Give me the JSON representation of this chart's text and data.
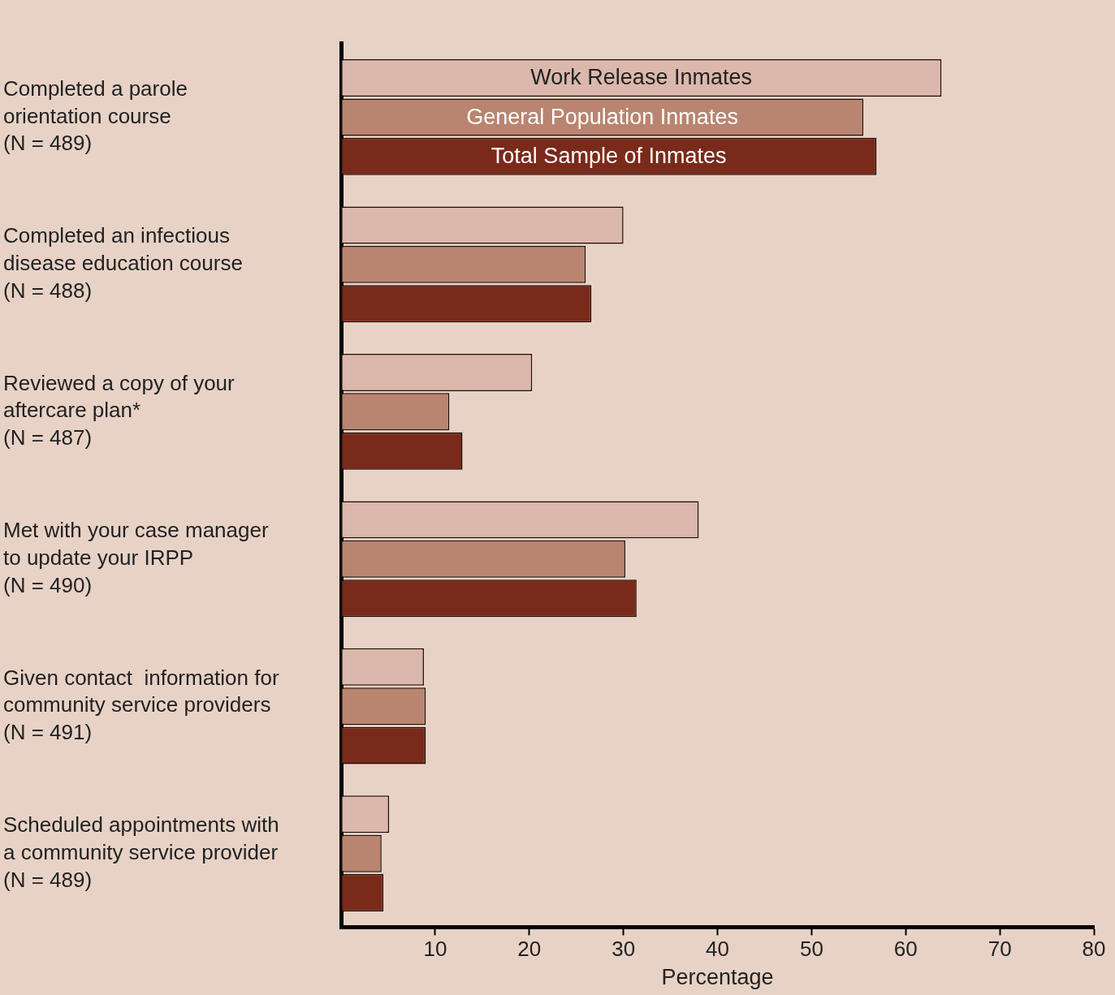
{
  "chart_data": {
    "type": "bar",
    "orientation": "horizontal",
    "xlabel": "Percentage",
    "categories": [
      "Completed a parole\norientation course\n(N = 489)",
      "Completed an infectious\ndisease education course\n(N = 488)",
      "Reviewed a copy of your\naftercare plan*\n(N = 487)",
      "Met with your case manager\nto update your IRPP\n(N = 490)",
      "Given contact  information for\ncommunity service providers\n(N = 491)",
      "Scheduled appointments with\na community service provider\n(N = 489)"
    ],
    "series": [
      {
        "name": "Work Release Inmates",
        "color": "#dbb8ab",
        "values": [
          63.8,
          30.0,
          20.3,
          38.0,
          8.8,
          5.1
        ]
      },
      {
        "name": "General Population Inmates",
        "color": "#b98470",
        "values": [
          55.5,
          26.0,
          11.5,
          30.2,
          9.0,
          4.3
        ]
      },
      {
        "name": "Total Sample of Inmates",
        "color": "#7a2a1a",
        "values": [
          56.9,
          26.6,
          12.9,
          31.4,
          9.0,
          4.5
        ]
      }
    ],
    "xlim": [
      0,
      80
    ],
    "xticks": [
      10,
      20,
      30,
      40,
      50,
      60,
      70,
      80
    ],
    "grid": false,
    "legend": false
  }
}
